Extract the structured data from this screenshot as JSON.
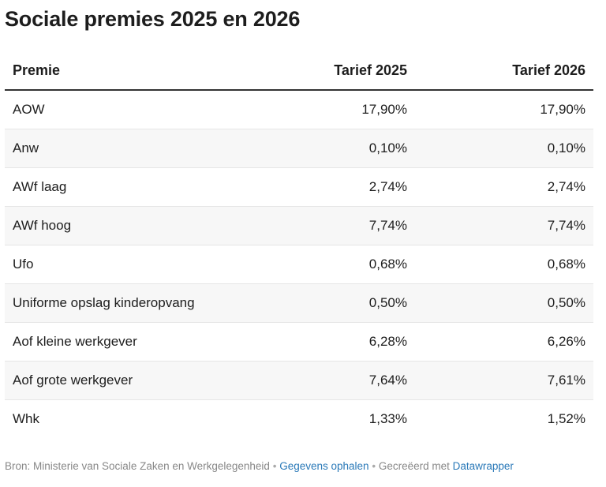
{
  "title": "Sociale premies 2025 en 2026",
  "table": {
    "headers": [
      "Premie",
      "Tarief 2025",
      "Tarief 2026"
    ],
    "rows": [
      [
        "AOW",
        "17,90%",
        "17,90%"
      ],
      [
        "Anw",
        "0,10%",
        "0,10%"
      ],
      [
        "AWf laag",
        "2,74%",
        "2,74%"
      ],
      [
        "AWf hoog",
        "7,74%",
        "7,74%"
      ],
      [
        "Ufo",
        "0,68%",
        "0,68%"
      ],
      [
        "Uniforme opslag kinderopvang",
        "0,50%",
        "0,50%"
      ],
      [
        "Aof kleine werkgever",
        "6,28%",
        "6,26%"
      ],
      [
        "Aof grote werkgever",
        "7,64%",
        "7,61%"
      ],
      [
        "Whk",
        "1,33%",
        "1,52%"
      ]
    ]
  },
  "footer": {
    "source": "Bron: Ministerie van Sociale Zaken en Werkgelegenheid",
    "separator": "•",
    "get_data_link": "Gegevens ophalen",
    "created_with": "Gecreëerd met",
    "datawrapper_link": "Datawrapper"
  },
  "colors": {
    "text": "#1d1d1d",
    "footer_text": "#888888",
    "link": "#2a79b8",
    "row_stripe": "#f7f7f7"
  }
}
